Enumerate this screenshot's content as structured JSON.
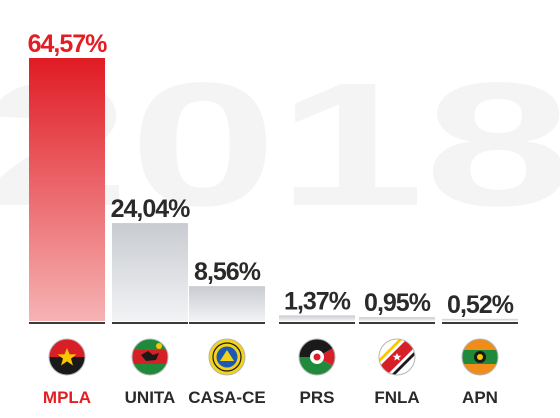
{
  "chart_data": {
    "type": "bar",
    "categories": [
      "MPLA",
      "UNITA",
      "CASA-CE",
      "PRS",
      "FNLA",
      "APN"
    ],
    "values": [
      64.57,
      24.04,
      8.56,
      1.37,
      0.95,
      0.52
    ],
    "value_labels": [
      "64,57%",
      "24,04%",
      "8,56%",
      "1,37%",
      "0,95%",
      "0,52%"
    ],
    "title": "",
    "xlabel": "",
    "ylabel": "",
    "ylim": [
      0,
      64.57
    ],
    "grid": false,
    "legend": "none",
    "background_text": "2018",
    "highlight": "MPLA",
    "colors": {
      "highlight_top": "#e01b24",
      "highlight_bottom": "#f6b3b3",
      "highlight_text": "#e21d24",
      "bar_top": "#c8cbd0",
      "bar_bottom": "#f2f3f5",
      "text": "#2a2a2a",
      "baseline": "#3a3a3a"
    },
    "icons": [
      "mpla-flag-icon",
      "unita-flag-icon",
      "casa-ce-emblem-icon",
      "prs-emblem-icon",
      "fnla-flag-icon",
      "apn-emblem-icon"
    ]
  }
}
